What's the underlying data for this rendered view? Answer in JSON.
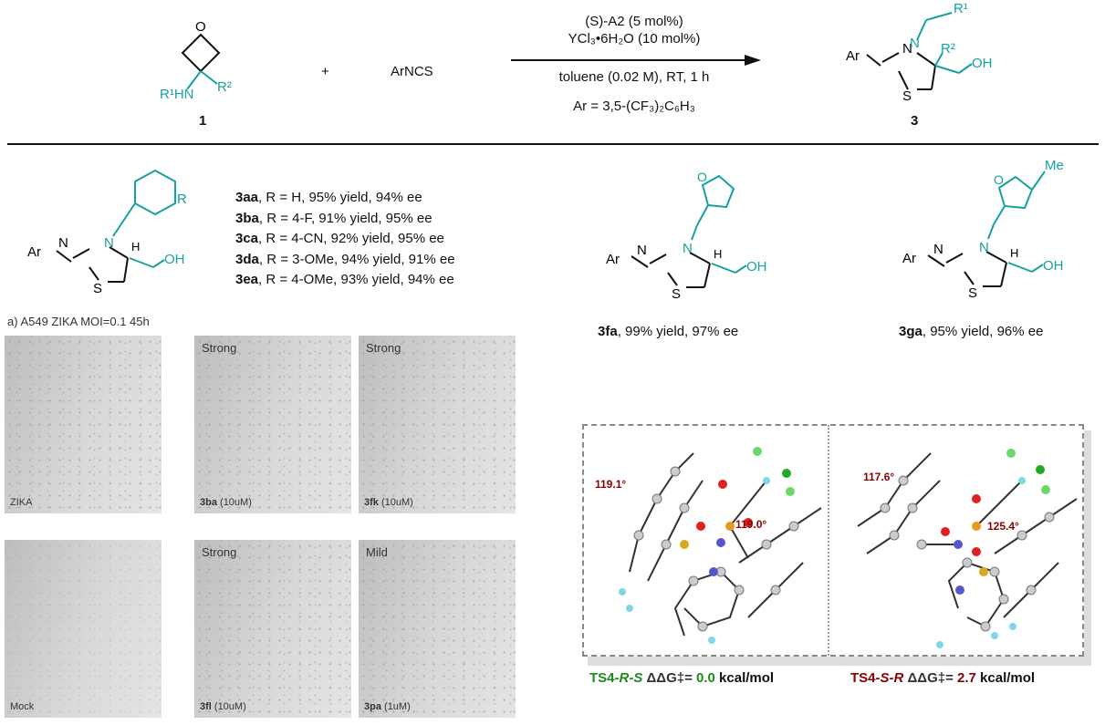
{
  "scheme": {
    "reactant1": {
      "label": "1",
      "amine": "R¹HN",
      "r2": "R²",
      "o": "O"
    },
    "plus": "+",
    "reactant2": "ArNCS",
    "conditions_above": [
      "(S)-A2 (5 mol%)",
      "YCl₃•6H₂O (10 mol%)"
    ],
    "conditions_below": [
      "toluene (0.02 M), RT, 1 h",
      "Ar = 3,5-(CF₃)₂C₆H₃"
    ],
    "product": {
      "label": "3",
      "ar": "Ar",
      "n": "N",
      "s": "S",
      "oh": "OH",
      "r1": "R¹",
      "r2": "R²"
    }
  },
  "substrates": {
    "generic": {
      "ar": "Ar",
      "r": "R",
      "h": "H",
      "oh": "OH",
      "n": "N",
      "s": "S"
    },
    "list": [
      {
        "id": "3aa",
        "text": ", R = H, 95% yield, 94% ee"
      },
      {
        "id": "3ba",
        "text": ", R = 4-F, 91% yield, 95% ee"
      },
      {
        "id": "3ca",
        "text": ", R = 4-CN, 92% yield, 95% ee"
      },
      {
        "id": "3da",
        "text": ", R = 3-OMe, 94% yield, 91% ee"
      },
      {
        "id": "3ea",
        "text": ", R = 4-OMe, 93% yield, 94% ee"
      }
    ],
    "fa": {
      "id": "3fa",
      "text": ", 99% yield, 97% ee"
    },
    "ga": {
      "id": "3ga",
      "text": ", 95% yield, 96% ee",
      "me": "Me"
    }
  },
  "assay": {
    "title": "a) A549 ZIKA MOI=0.1 45h",
    "panels": [
      {
        "top": "",
        "id": "",
        "bottom": "ZIKA"
      },
      {
        "top": "Strong",
        "id": "3ba",
        "bottom": " (10uM)"
      },
      {
        "top": "Strong",
        "id": "3fk",
        "bottom": " (10uM)"
      },
      {
        "top": "",
        "id": "",
        "bottom": "Mock"
      },
      {
        "top": "Strong",
        "id": "3fl",
        "bottom": " (10uM)"
      },
      {
        "top": "Mild",
        "id": "3pa",
        "bottom": " (1uM)"
      }
    ]
  },
  "ts": {
    "left": {
      "name": "TS4-",
      "stereo": "R-S",
      "dg": " ΔΔG‡= ",
      "value": "0.0",
      "unit": " kcal/mol",
      "angles": [
        "119.1°",
        "119.0°"
      ],
      "color": "#1e8a1e"
    },
    "right": {
      "name": "TS4-",
      "stereo": "S-R",
      "dg": " ΔΔG‡= ",
      "value": "2.7",
      "unit": " kcal/mol",
      "angles": [
        "117.6°",
        "125.4°"
      ],
      "color": "#8b0000"
    }
  },
  "colors": {
    "teal": "#17a0a0",
    "green": "#1e8a1e",
    "darkred": "#8b0000"
  }
}
